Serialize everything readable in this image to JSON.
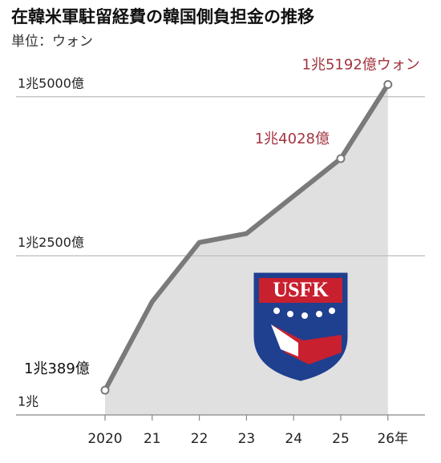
{
  "chart_data": {
    "type": "line",
    "title": "在韓米軍駐留経費の韓国側負担金の推移",
    "subtitle": "単位：ウォン",
    "categories": [
      "2020",
      "21",
      "22",
      "23",
      "24",
      "25",
      "26年"
    ],
    "values": [
      10389,
      11780,
      12710,
      12850,
      13440,
      14028,
      15192
    ],
    "value_labels": [
      "1兆389億",
      null,
      null,
      null,
      null,
      "1兆4028億",
      "1兆5192億ウォン"
    ],
    "color": "#7a7a7a",
    "area_color": "#e0e0e0",
    "label_color": "#a3343f",
    "ylim": [
      10000,
      15450
    ],
    "yticks": [
      {
        "value": 10000,
        "label": "1兆"
      },
      {
        "value": 12500,
        "label": "1兆2500億"
      },
      {
        "value": 15000,
        "label": "1兆5000億"
      }
    ],
    "grid": true,
    "logo_text": "USFK"
  }
}
